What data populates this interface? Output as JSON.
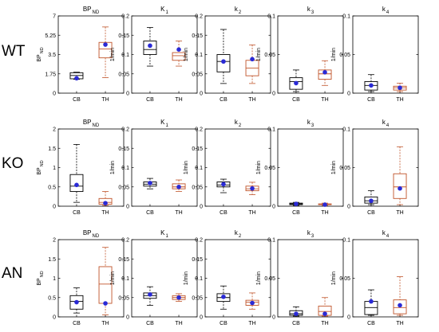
{
  "row_labels": [
    "WT",
    "KO",
    "AN"
  ],
  "colors": {
    "CB": "#000000",
    "TH": "#c0542a",
    "mean": "#2a2ad6",
    "axis": "#000000"
  },
  "chart_data": [
    {
      "type": "box",
      "row": "WT",
      "title": "BP",
      "title_sub": "ND",
      "ylabel": "BP",
      "ylabel_sub": "ND",
      "ylim": [
        0,
        7
      ],
      "yticks": [
        "0",
        "1.75",
        "3.5",
        "5.25",
        "7"
      ],
      "categories": [
        "CB",
        "TH"
      ],
      "series": [
        {
          "group": "CB",
          "whisker_low": 1.25,
          "q1": 1.3,
          "median": 1.6,
          "q3": 1.85,
          "whisker_high": 1.9,
          "mean": 1.35
        },
        {
          "group": "TH",
          "whisker_low": 1.4,
          "q1": 3.2,
          "median": 4.0,
          "q3": 4.6,
          "whisker_high": 6.0,
          "mean": 4.4
        }
      ]
    },
    {
      "type": "box",
      "row": "WT",
      "title": "K",
      "title_sub": "1",
      "ylabel": "1/min",
      "ylabel_sub": "",
      "ylim": [
        0,
        0.2
      ],
      "yticks": [
        "0",
        "0.05",
        "0.1",
        "0.15",
        "0.2"
      ],
      "categories": [
        "CB",
        "TH"
      ],
      "series": [
        {
          "group": "CB",
          "whisker_low": 0.07,
          "q1": 0.1,
          "median": 0.113,
          "q3": 0.135,
          "whisker_high": 0.17,
          "mean": 0.123
        },
        {
          "group": "TH",
          "whisker_low": 0.07,
          "q1": 0.085,
          "median": 0.097,
          "q3": 0.105,
          "whisker_high": 0.135,
          "mean": 0.113
        }
      ]
    },
    {
      "type": "box",
      "row": "WT",
      "title": "k",
      "title_sub": "2",
      "ylabel": "1/min",
      "ylabel_sub": "",
      "ylim": [
        0,
        0.2
      ],
      "yticks": [
        "0",
        "0.05",
        "0.1",
        "0.15",
        "0.2"
      ],
      "categories": [
        "CB",
        "TH"
      ],
      "series": [
        {
          "group": "CB",
          "whisker_low": 0.025,
          "q1": 0.055,
          "median": 0.082,
          "q3": 0.1,
          "whisker_high": 0.165,
          "mean": 0.082
        },
        {
          "group": "TH",
          "whisker_low": 0.025,
          "q1": 0.045,
          "median": 0.065,
          "q3": 0.085,
          "whisker_high": 0.125,
          "mean": 0.088
        }
      ]
    },
    {
      "type": "box",
      "row": "WT",
      "title": "k",
      "title_sub": "3",
      "ylabel": "1/min",
      "ylabel_sub": "",
      "ylim": [
        0,
        0.1
      ],
      "yticks": [
        "0",
        "0.05",
        "0.1"
      ],
      "categories": [
        "CB",
        "TH"
      ],
      "series": [
        {
          "group": "CB",
          "whisker_low": 0.002,
          "q1": 0.005,
          "median": 0.015,
          "q3": 0.02,
          "whisker_high": 0.03,
          "mean": 0.013
        },
        {
          "group": "TH",
          "whisker_low": 0.01,
          "q1": 0.018,
          "median": 0.025,
          "q3": 0.03,
          "whisker_high": 0.042,
          "mean": 0.027
        }
      ]
    },
    {
      "type": "box",
      "row": "WT",
      "title": "k",
      "title_sub": "4",
      "ylabel": "1/min",
      "ylabel_sub": "",
      "ylim": [
        0,
        0.1
      ],
      "yticks": [
        "0",
        "0.05",
        "0.1"
      ],
      "categories": [
        "CB",
        "TH"
      ],
      "series": [
        {
          "group": "CB",
          "whisker_low": 0.002,
          "q1": 0.004,
          "median": 0.01,
          "q3": 0.015,
          "whisker_high": 0.024,
          "mean": 0.01
        },
        {
          "group": "TH",
          "whisker_low": 0.002,
          "q1": 0.004,
          "median": 0.007,
          "q3": 0.009,
          "whisker_high": 0.013,
          "mean": 0.007
        }
      ]
    },
    {
      "type": "box",
      "row": "KO",
      "title": "BP",
      "title_sub": "ND",
      "ylabel": "BP",
      "ylabel_sub": "ND",
      "ylim": [
        0,
        2
      ],
      "yticks": [
        "0",
        "0.5",
        "1",
        "1.5",
        "2"
      ],
      "categories": [
        "CB",
        "TH"
      ],
      "series": [
        {
          "group": "CB",
          "whisker_low": 0.1,
          "q1": 0.38,
          "median": 0.52,
          "q3": 0.82,
          "whisker_high": 1.6,
          "mean": 0.55
        },
        {
          "group": "TH",
          "whisker_low": 0.02,
          "q1": 0.05,
          "median": 0.1,
          "q3": 0.2,
          "whisker_high": 0.38,
          "mean": 0.08
        }
      ]
    },
    {
      "type": "box",
      "row": "KO",
      "title": "K",
      "title_sub": "1",
      "ylabel": "1/min",
      "ylabel_sub": "",
      "ylim": [
        0,
        0.2
      ],
      "yticks": [
        "0",
        "0.05",
        "0.1",
        "0.15",
        "0.2"
      ],
      "categories": [
        "CB",
        "TH"
      ],
      "series": [
        {
          "group": "CB",
          "whisker_low": 0.045,
          "q1": 0.052,
          "median": 0.057,
          "q3": 0.063,
          "whisker_high": 0.072,
          "mean": 0.06
        },
        {
          "group": "TH",
          "whisker_low": 0.038,
          "q1": 0.045,
          "median": 0.05,
          "q3": 0.058,
          "whisker_high": 0.068,
          "mean": 0.05
        }
      ]
    },
    {
      "type": "box",
      "row": "KO",
      "title": "k",
      "title_sub": "2",
      "ylabel": "1/min",
      "ylabel_sub": "",
      "ylim": [
        0,
        0.2
      ],
      "yticks": [
        "0",
        "0.05",
        "0.1",
        "0.15",
        "0.2"
      ],
      "categories": [
        "CB",
        "TH"
      ],
      "series": [
        {
          "group": "CB",
          "whisker_low": 0.035,
          "q1": 0.05,
          "median": 0.055,
          "q3": 0.063,
          "whisker_high": 0.07,
          "mean": 0.057
        },
        {
          "group": "TH",
          "whisker_low": 0.03,
          "q1": 0.04,
          "median": 0.045,
          "q3": 0.052,
          "whisker_high": 0.062,
          "mean": 0.046
        }
      ]
    },
    {
      "type": "box",
      "row": "KO",
      "title": "k",
      "title_sub": "3",
      "ylabel": "1/min",
      "ylabel_sub": "",
      "ylim": [
        0,
        0.1
      ],
      "yticks": [
        "0",
        "0.05",
        "0.1"
      ],
      "categories": [
        "CB",
        "TH"
      ],
      "series": [
        {
          "group": "CB",
          "whisker_low": 0.001,
          "q1": 0.002,
          "median": 0.003,
          "q3": 0.004,
          "whisker_high": 0.005,
          "mean": 0.003
        },
        {
          "group": "TH",
          "whisker_low": 0.001,
          "q1": 0.002,
          "median": 0.002,
          "q3": 0.003,
          "whisker_high": 0.004,
          "mean": 0.002
        }
      ]
    },
    {
      "type": "box",
      "row": "KO",
      "title": "k",
      "title_sub": "4",
      "ylabel": "1/min",
      "ylabel_sub": "",
      "ylim": [
        0,
        0.1
      ],
      "yticks": [
        "0",
        "0.05",
        "0.1"
      ],
      "categories": [
        "CB",
        "TH"
      ],
      "series": [
        {
          "group": "CB",
          "whisker_low": 0.002,
          "q1": 0.004,
          "median": 0.007,
          "q3": 0.012,
          "whisker_high": 0.02,
          "mean": 0.007
        },
        {
          "group": "TH",
          "whisker_low": 0.002,
          "q1": 0.01,
          "median": 0.025,
          "q3": 0.042,
          "whisker_high": 0.077,
          "mean": 0.023
        }
      ]
    },
    {
      "type": "box",
      "row": "AN",
      "title": "BP",
      "title_sub": "ND",
      "ylabel": "BP",
      "ylabel_sub": "ND",
      "ylim": [
        0,
        2
      ],
      "yticks": [
        "0",
        "0.5",
        "1",
        "1.5",
        "2"
      ],
      "categories": [
        "CB",
        "TH"
      ],
      "series": [
        {
          "group": "CB",
          "whisker_low": 0.1,
          "q1": 0.2,
          "median": 0.4,
          "q3": 0.55,
          "whisker_high": 0.75,
          "mean": 0.38
        },
        {
          "group": "TH",
          "whisker_low": 0.05,
          "q1": 0.35,
          "median": 0.85,
          "q3": 1.3,
          "whisker_high": 1.8,
          "mean": 0.35
        }
      ]
    },
    {
      "type": "box",
      "row": "AN",
      "title": "K",
      "title_sub": "1",
      "ylabel": "1/min",
      "ylabel_sub": "",
      "ylim": [
        0,
        0.2
      ],
      "yticks": [
        "0",
        "0.05",
        "0.1",
        "0.15",
        "0.2"
      ],
      "categories": [
        "CB",
        "TH"
      ],
      "series": [
        {
          "group": "CB",
          "whisker_low": 0.03,
          "q1": 0.048,
          "median": 0.055,
          "q3": 0.062,
          "whisker_high": 0.078,
          "mean": 0.058
        },
        {
          "group": "TH",
          "whisker_low": 0.04,
          "q1": 0.045,
          "median": 0.05,
          "q3": 0.055,
          "whisker_high": 0.06,
          "mean": 0.05
        }
      ]
    },
    {
      "type": "box",
      "row": "AN",
      "title": "k",
      "title_sub": "2",
      "ylabel": "1/min",
      "ylabel_sub": "",
      "ylim": [
        0,
        0.2
      ],
      "yticks": [
        "0",
        "0.05",
        "0.1",
        "0.15",
        "0.2"
      ],
      "categories": [
        "CB",
        "TH"
      ],
      "series": [
        {
          "group": "CB",
          "whisker_low": 0.02,
          "q1": 0.04,
          "median": 0.05,
          "q3": 0.06,
          "whisker_high": 0.08,
          "mean": 0.052
        },
        {
          "group": "TH",
          "whisker_low": 0.02,
          "q1": 0.03,
          "median": 0.038,
          "q3": 0.043,
          "whisker_high": 0.062,
          "mean": 0.036
        }
      ]
    },
    {
      "type": "box",
      "row": "AN",
      "title": "k",
      "title_sub": "3",
      "ylabel": "1/min",
      "ylabel_sub": "",
      "ylim": [
        0,
        0.1
      ],
      "yticks": [
        "0",
        "0.05",
        "0.1"
      ],
      "categories": [
        "CB",
        "TH"
      ],
      "series": [
        {
          "group": "CB",
          "whisker_low": 0.001,
          "q1": 0.002,
          "median": 0.004,
          "q3": 0.008,
          "whisker_high": 0.013,
          "mean": 0.004
        },
        {
          "group": "TH",
          "whisker_low": 0.001,
          "q1": 0.002,
          "median": 0.007,
          "q3": 0.014,
          "whisker_high": 0.025,
          "mean": 0.004
        }
      ]
    },
    {
      "type": "box",
      "row": "AN",
      "title": "k",
      "title_sub": "4",
      "ylabel": "1/min",
      "ylabel_sub": "",
      "ylim": [
        0,
        0.1
      ],
      "yticks": [
        "0",
        "0.05",
        "0.1"
      ],
      "categories": [
        "CB",
        "TH"
      ],
      "series": [
        {
          "group": "CB",
          "whisker_low": 0.002,
          "q1": 0.003,
          "median": 0.012,
          "q3": 0.02,
          "whisker_high": 0.035,
          "mean": 0.02
        },
        {
          "group": "TH",
          "whisker_low": 0.002,
          "q1": 0.004,
          "median": 0.012,
          "q3": 0.022,
          "whisker_high": 0.052,
          "mean": 0.015
        }
      ]
    }
  ]
}
